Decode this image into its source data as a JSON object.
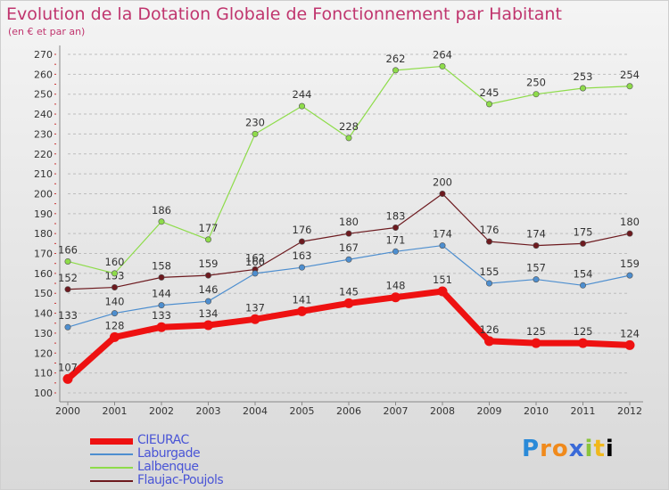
{
  "chart_data": {
    "type": "line",
    "title": "Evolution de la Dotation Globale de Fonctionnement par Habitant",
    "subtitle": "(en € et par an)",
    "x": [
      "2000",
      "2001",
      "2002",
      "2003",
      "2004",
      "2005",
      "2006",
      "2007",
      "2008",
      "2009",
      "2010",
      "2011",
      "2012"
    ],
    "ylim": [
      100,
      270
    ],
    "yticks": [
      100,
      110,
      120,
      130,
      140,
      150,
      160,
      170,
      180,
      190,
      200,
      210,
      220,
      230,
      240,
      250,
      260,
      270
    ],
    "grid": "horizontal dashed",
    "legend_position": "bottom-left",
    "series": [
      {
        "name": "CIEURAC",
        "color": "#ee1111",
        "values": [
          107,
          128,
          133,
          134,
          137,
          141,
          145,
          148,
          151,
          126,
          125,
          125,
          124
        ]
      },
      {
        "name": "Laburgade",
        "color": "#4d8ecf",
        "values": [
          133,
          140,
          144,
          146,
          160,
          163,
          167,
          171,
          174,
          155,
          157,
          154,
          159
        ]
      },
      {
        "name": "Lalbenque",
        "color": "#8edc4a",
        "values": [
          166,
          160,
          186,
          177,
          230,
          244,
          228,
          262,
          264,
          245,
          250,
          253,
          254
        ]
      },
      {
        "name": "Flaujac-Poujols",
        "color": "#6d1a1f",
        "values": [
          152,
          153,
          158,
          159,
          162,
          176,
          180,
          183,
          200,
          176,
          174,
          175,
          180
        ]
      }
    ]
  },
  "logo": {
    "letters": [
      "P",
      "r",
      "o",
      "x",
      "i",
      "t",
      "i"
    ]
  }
}
